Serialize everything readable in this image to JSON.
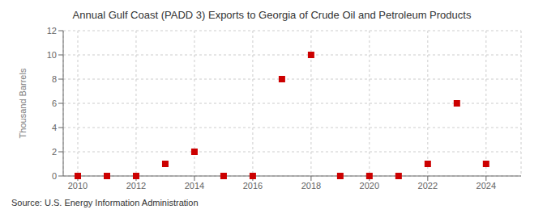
{
  "chart_data": {
    "type": "scatter",
    "title": "Annual Gulf Coast (PADD 3) Exports to Georgia of Crude Oil and Petroleum Products",
    "ylabel": "Thousand Barrels",
    "annotations": [
      "Source: U.S. Energy Information Administration"
    ],
    "x": [
      2010,
      2011,
      2012,
      2013,
      2014,
      2015,
      2016,
      2017,
      2018,
      2019,
      2020,
      2021,
      2022,
      2023,
      2024
    ],
    "values": [
      0,
      0,
      0,
      1,
      2,
      0,
      0,
      8,
      10,
      0,
      0,
      0,
      1,
      6,
      1
    ],
    "color": "#cc0000",
    "marker": "square",
    "xlim": [
      2009.5,
      2025.2
    ],
    "ylim": [
      0,
      12
    ],
    "xticks": [
      2010,
      2012,
      2014,
      2016,
      2018,
      2020,
      2022,
      2024
    ],
    "yticks": [
      0,
      2,
      4,
      6,
      8,
      10,
      12
    ],
    "grid": true
  }
}
